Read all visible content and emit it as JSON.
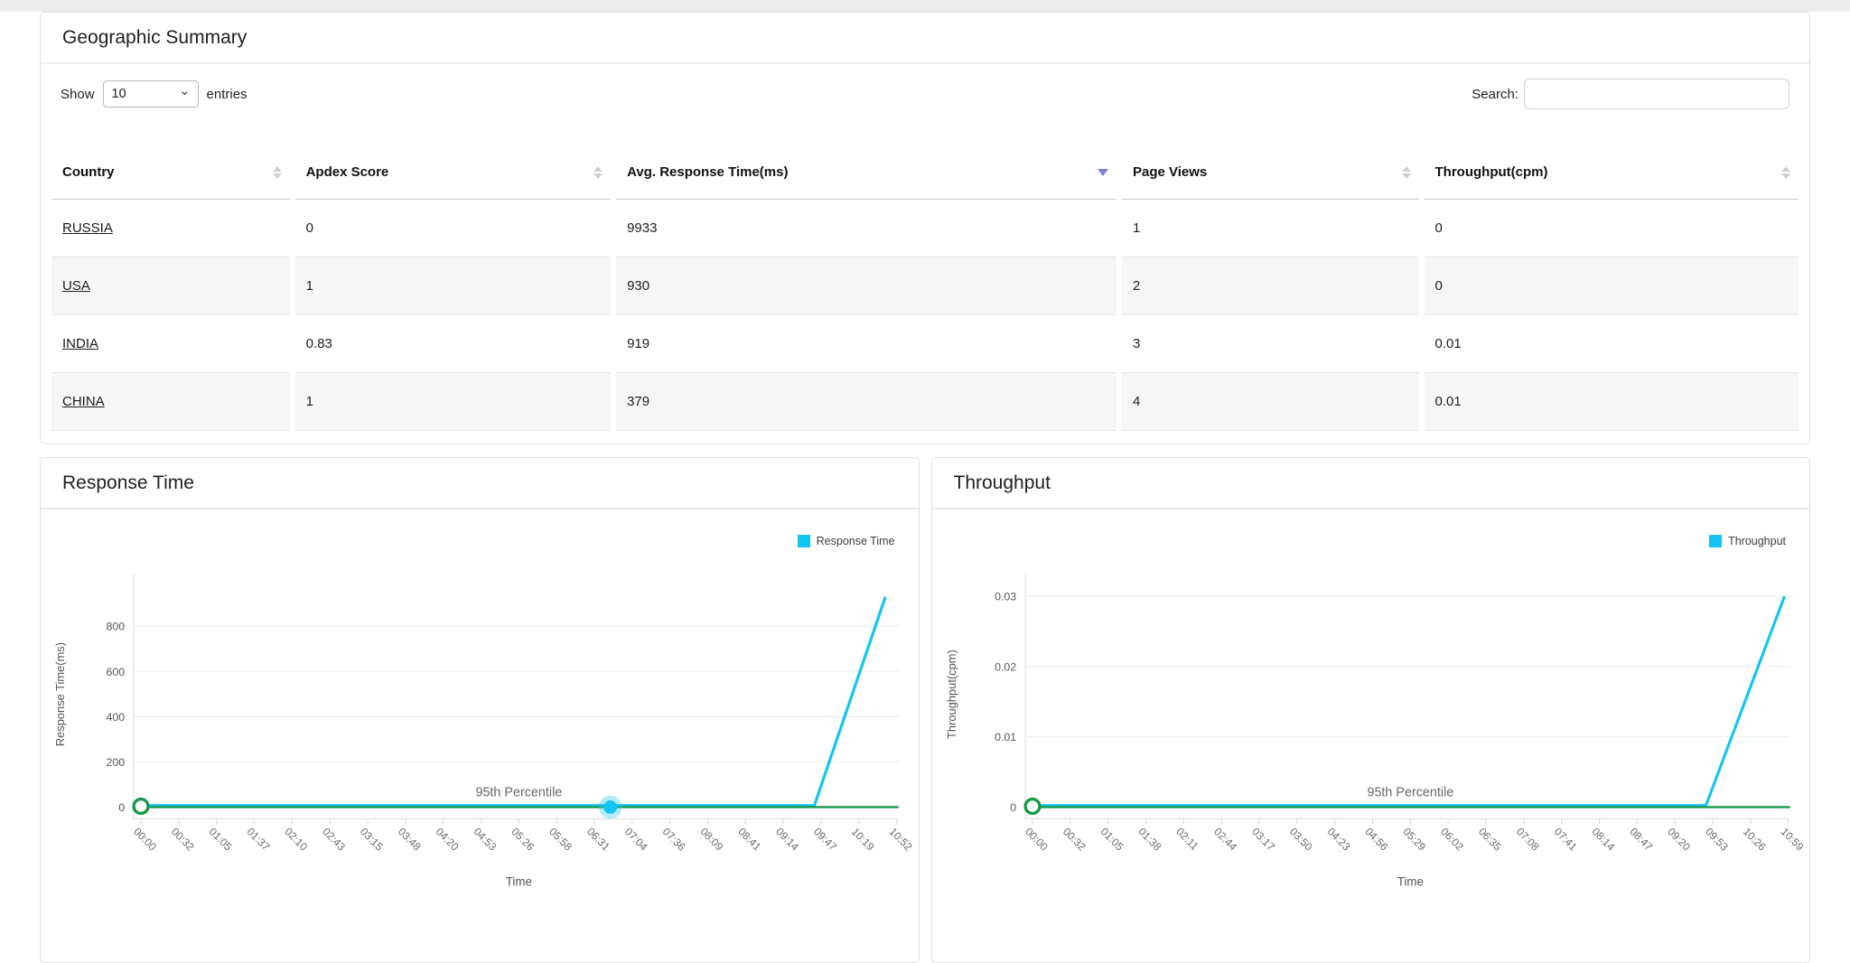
{
  "summary_card": {
    "title": "Geographic Summary",
    "show_label": "Show",
    "page_size": "10",
    "entries_label": "entries",
    "search_label": "Search:",
    "search_value": "",
    "table": {
      "columns": [
        {
          "label": "Country",
          "key": "country",
          "sort": "none"
        },
        {
          "label": "Apdex Score",
          "key": "apdex",
          "sort": "none"
        },
        {
          "label": "Avg. Response Time(ms)",
          "key": "avg_response_ms",
          "sort": "desc"
        },
        {
          "label": "Page Views",
          "key": "page_views",
          "sort": "none"
        },
        {
          "label": "Throughput(cpm)",
          "key": "throughput_cpm",
          "sort": "none"
        }
      ],
      "rows": [
        {
          "country": "RUSSIA",
          "apdex": "0",
          "avg_response_ms": "9933",
          "page_views": "1",
          "throughput_cpm": "0"
        },
        {
          "country": "USA",
          "apdex": "1",
          "avg_response_ms": "930",
          "page_views": "2",
          "throughput_cpm": "0"
        },
        {
          "country": "INDIA",
          "apdex": "0.83",
          "avg_response_ms": "919",
          "page_views": "3",
          "throughput_cpm": "0.01"
        },
        {
          "country": "CHINA",
          "apdex": "1",
          "avg_response_ms": "379",
          "page_views": "4",
          "throughput_cpm": "0.01"
        }
      ]
    }
  },
  "chart_data": [
    {
      "type": "line",
      "title": "Response Time",
      "xlabel": "Time",
      "ylabel": "Response Time(ms)",
      "y_ticks": [
        0,
        200,
        400,
        600,
        800
      ],
      "ylim": [
        0,
        950
      ],
      "grid": "horizontal",
      "legend_position": "top-right",
      "legend": [
        {
          "label": "Response Time",
          "color": "#14c4f2"
        }
      ],
      "x": [
        "00:00",
        "00:32",
        "01:05",
        "01:37",
        "02:10",
        "02:43",
        "03:15",
        "03:48",
        "04:20",
        "04:53",
        "05:26",
        "05:58",
        "06:31",
        "07:04",
        "07:36",
        "08:09",
        "08:41",
        "09:14",
        "09:47",
        "10:19",
        "10:52"
      ],
      "series": [
        {
          "name": "Response Time",
          "color": "#14c4f2",
          "shape": "flat_then_spike",
          "flat_value": 0,
          "spike_start_x": "09:47",
          "spike_start_frac": 0.891,
          "peak_value": 930,
          "peak_x": "~10:35",
          "peak_frac": 0.985
        },
        {
          "name": "95th Percentile",
          "color": "#179a47",
          "shape": "constant",
          "constant_value": 0,
          "line_label": "95th Percentile",
          "start_marker": "open-circle"
        }
      ],
      "highlight_point": {
        "frac": 0.621,
        "value": 0,
        "near_x": "06:31"
      }
    },
    {
      "type": "line",
      "title": "Throughput",
      "xlabel": "Time",
      "ylabel": "Throughput(cpm)",
      "y_ticks": [
        0,
        0.01,
        0.02,
        0.03
      ],
      "ylim": [
        0,
        0.031
      ],
      "grid": "horizontal",
      "legend_position": "top-right",
      "legend": [
        {
          "label": "Throughput",
          "color": "#14c4f2"
        }
      ],
      "x": [
        "00:00",
        "00:32",
        "01:05",
        "01:38",
        "02:11",
        "02:44",
        "03:17",
        "03:50",
        "04:23",
        "04:56",
        "05:29",
        "06:02",
        "06:35",
        "07:08",
        "07:41",
        "08:14",
        "08:47",
        "09:20",
        "09:53",
        "10:26",
        "10:59"
      ],
      "series": [
        {
          "name": "Throughput",
          "color": "#14c4f2",
          "shape": "flat_then_spike",
          "flat_value": 0,
          "spike_start_x": "09:53",
          "spike_start_frac": 0.891,
          "peak_value": 0.03,
          "peak_x": "~10:55",
          "peak_frac": 0.995
        },
        {
          "name": "95th Percentile",
          "color": "#179a47",
          "shape": "constant",
          "constant_value": 0,
          "line_label": "95th Percentile",
          "start_marker": "open-circle"
        }
      ],
      "highlight_point": null
    }
  ],
  "colors": {
    "series_cyan": "#14c4f2",
    "percentile_green": "#179a47",
    "sort_active": "#7b80dc",
    "sort_inactive": "#cfcfcf",
    "grid_line": "#ededed",
    "axis_line": "#e2e2e2"
  }
}
